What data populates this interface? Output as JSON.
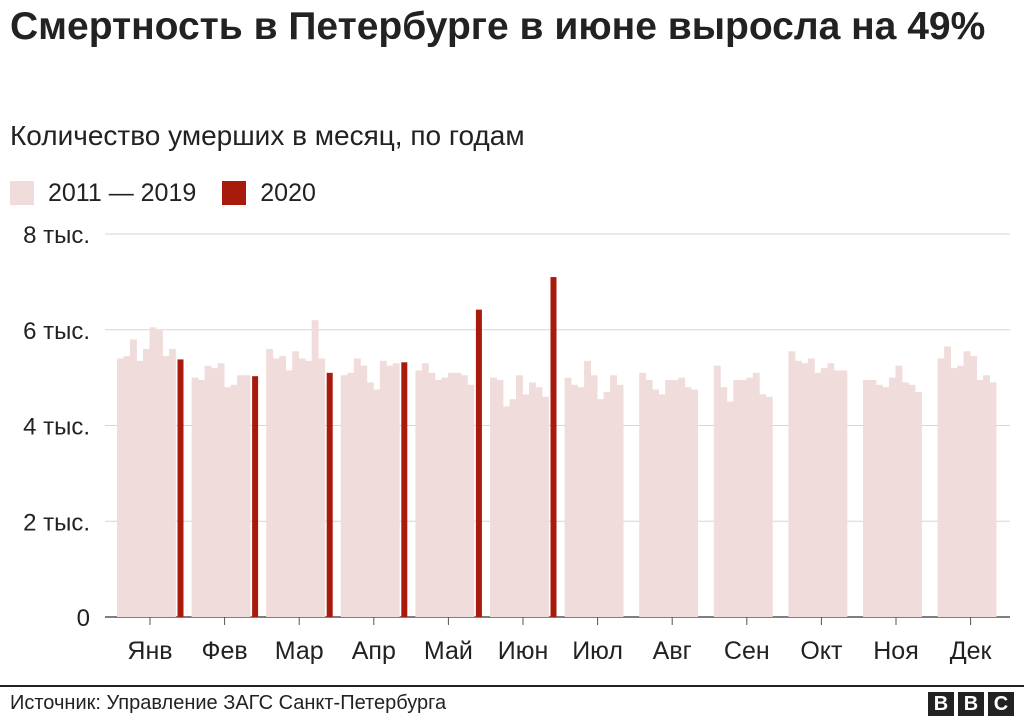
{
  "header": {
    "title": "Смертность в Петербурге в июне выросла на 49%",
    "subtitle": "Количество умерших в месяц, по годам"
  },
  "legend": [
    {
      "label": "2011 — 2019",
      "color": "#f0dcdb"
    },
    {
      "label": "2020",
      "color": "#a71a0c"
    }
  ],
  "footer": {
    "source": "Источник: Управление ЗАГС Санкт-Петербурга",
    "logo_letters": [
      "B",
      "B",
      "C"
    ]
  },
  "chart_data": {
    "type": "bar",
    "ylim": [
      0,
      8000
    ],
    "yticks": [
      {
        "value": 0,
        "label": "0"
      },
      {
        "value": 2000,
        "label": "2 тыс."
      },
      {
        "value": 4000,
        "label": "4 тыс."
      },
      {
        "value": 6000,
        "label": "6 тыс."
      },
      {
        "value": 8000,
        "label": "8 тыс."
      }
    ],
    "grid": true,
    "legend_position": "top-left",
    "categories": [
      "Янв",
      "Фев",
      "Мар",
      "Апр",
      "Май",
      "Июн",
      "Июл",
      "Авг",
      "Сен",
      "Окт",
      "Ноя",
      "Дек"
    ],
    "series": [
      {
        "name": "2011 — 2019",
        "color": "#f0dcdb",
        "values_by_year": [
          [
            5400,
            5000,
            5600,
            5050,
            5150,
            5000,
            5000,
            5100,
            5250,
            5550,
            4950,
            5400
          ],
          [
            5450,
            4950,
            5400,
            5100,
            5300,
            4950,
            4850,
            4950,
            4800,
            5350,
            4950,
            5650
          ],
          [
            5800,
            5250,
            5450,
            5400,
            5100,
            4400,
            4800,
            4750,
            4500,
            5300,
            4850,
            5200
          ],
          [
            5350,
            5200,
            5150,
            5250,
            4950,
            4550,
            5350,
            4650,
            4950,
            5400,
            4800,
            5250
          ],
          [
            5600,
            5300,
            5550,
            4900,
            5000,
            5050,
            5050,
            4950,
            4950,
            5100,
            5000,
            5550
          ],
          [
            6050,
            4800,
            5400,
            4750,
            5100,
            4650,
            4550,
            4950,
            5000,
            5200,
            5250,
            5450
          ],
          [
            6000,
            4850,
            5350,
            5350,
            5100,
            4900,
            4700,
            5000,
            5100,
            5300,
            4900,
            4950
          ],
          [
            5450,
            5050,
            6200,
            5250,
            5050,
            4800,
            5050,
            4800,
            4650,
            5150,
            4850,
            5050
          ],
          [
            5600,
            5050,
            5400,
            5300,
            4850,
            4600,
            4850,
            4750,
            4600,
            5150,
            4700,
            4900
          ]
        ]
      },
      {
        "name": "2020",
        "color": "#a71a0c",
        "values": [
          5380,
          5030,
          5100,
          5320,
          6420,
          7100,
          null,
          null,
          null,
          null,
          null,
          null
        ]
      }
    ]
  }
}
